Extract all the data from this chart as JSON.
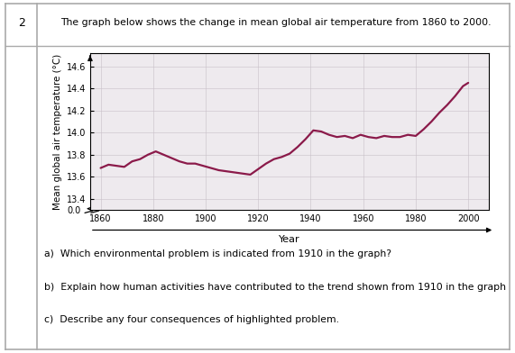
{
  "title": "The graph below shows the change in mean global air temperature from 1860 to 2000.",
  "xlabel": "Year",
  "ylabel": "Mean global air temperature (°C)",
  "question_number": "2",
  "line_color": "#8B1A4A",
  "background_color": "#eeeaee",
  "grid_color": "#c8c0c8",
  "questions": [
    "a)  Which environmental problem is indicated from 1910 in the graph?",
    "b)  Explain how human activities have contributed to the trend shown from 1910 in the graph",
    "c)  Describe any four consequences of highlighted problem."
  ],
  "years": [
    1860,
    1863,
    1866,
    1869,
    1872,
    1875,
    1878,
    1881,
    1884,
    1887,
    1890,
    1893,
    1896,
    1899,
    1902,
    1905,
    1908,
    1911,
    1914,
    1917,
    1920,
    1923,
    1926,
    1929,
    1932,
    1935,
    1938,
    1941,
    1944,
    1947,
    1950,
    1953,
    1956,
    1959,
    1962,
    1965,
    1968,
    1971,
    1974,
    1977,
    1980,
    1983,
    1986,
    1989,
    1992,
    1995,
    1998,
    2000
  ],
  "temps": [
    13.68,
    13.71,
    13.7,
    13.69,
    13.74,
    13.76,
    13.8,
    13.83,
    13.8,
    13.77,
    13.74,
    13.72,
    13.72,
    13.7,
    13.68,
    13.66,
    13.65,
    13.64,
    13.63,
    13.62,
    13.67,
    13.72,
    13.76,
    13.78,
    13.81,
    13.87,
    13.94,
    14.02,
    14.01,
    13.98,
    13.96,
    13.97,
    13.95,
    13.98,
    13.96,
    13.95,
    13.97,
    13.96,
    13.96,
    13.98,
    13.97,
    14.03,
    14.1,
    14.18,
    14.25,
    14.33,
    14.42,
    14.45
  ],
  "yticks_main": [
    13.4,
    13.6,
    13.8,
    14.0,
    14.2,
    14.4,
    14.6
  ],
  "xticks": [
    1860,
    1880,
    1900,
    1920,
    1940,
    1960,
    1980,
    2000
  ],
  "ylim_main": [
    13.3,
    14.72
  ],
  "xlim": [
    1856,
    2008
  ],
  "outer_border_color": "#aaaaaa",
  "panel_bg": "#ffffff"
}
